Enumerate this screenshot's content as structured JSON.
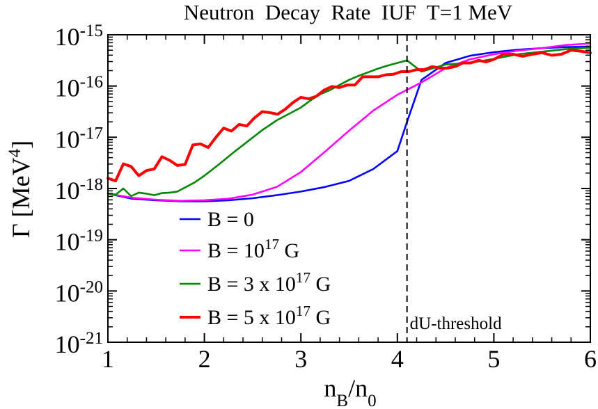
{
  "chart_data": {
    "type": "line",
    "title": "Neutron  Decay  Rate  IUF  T=1 MeV",
    "xlabel": {
      "base": "n",
      "sub1": "B",
      "slash": "/n",
      "sub2": "0"
    },
    "ylabel": {
      "text": "Γ [MeV",
      "sup": "4",
      "close": "]"
    },
    "xlim": [
      1,
      6
    ],
    "ylim_log10": [
      -21,
      -15
    ],
    "x_ticks": [
      {
        "value": 1,
        "label": "1"
      },
      {
        "value": 2,
        "label": "2"
      },
      {
        "value": 3,
        "label": "3"
      },
      {
        "value": 4,
        "label": "4"
      },
      {
        "value": 5,
        "label": "5"
      },
      {
        "value": 6,
        "label": "6"
      }
    ],
    "y_ticks": [
      {
        "exp": -15,
        "base": "10",
        "sup": "-15"
      },
      {
        "exp": -16,
        "base": "10",
        "sup": "-16"
      },
      {
        "exp": -17,
        "base": "10",
        "sup": "-17"
      },
      {
        "exp": -18,
        "base": "10",
        "sup": "-18"
      },
      {
        "exp": -19,
        "base": "10",
        "sup": "-19"
      },
      {
        "exp": -20,
        "base": "10",
        "sup": "-20"
      },
      {
        "exp": -21,
        "base": "10",
        "sup": "-21"
      }
    ],
    "threshold": {
      "x": 4.1,
      "label": "dU-threshold"
    },
    "legend_position": "bottom-left",
    "series": [
      {
        "name": "B = 0",
        "legend": {
          "text": "B = 0",
          "sup": "",
          "after": ""
        },
        "color": "#0000ff",
        "x": [
          1.0,
          1.25,
          1.5,
          1.75,
          2.0,
          2.25,
          2.5,
          2.75,
          3.0,
          3.25,
          3.5,
          3.75,
          4.0,
          4.1,
          4.25,
          4.5,
          4.75,
          5.0,
          5.25,
          5.5,
          5.75,
          6.0
        ],
        "log10_y": [
          -18.1,
          -18.2,
          -18.23,
          -18.25,
          -18.25,
          -18.23,
          -18.19,
          -18.13,
          -18.06,
          -17.97,
          -17.85,
          -17.62,
          -17.27,
          -16.7,
          -15.88,
          -15.55,
          -15.41,
          -15.34,
          -15.29,
          -15.26,
          -15.24,
          -15.23
        ]
      },
      {
        "name": "B = 10^17 G",
        "legend": {
          "text": "B = 10",
          "sup": "17",
          "after": " G"
        },
        "color": "#ff00ff",
        "x": [
          1.0,
          1.25,
          1.5,
          1.75,
          2.0,
          2.25,
          2.5,
          2.75,
          3.0,
          3.25,
          3.5,
          3.75,
          4.0,
          4.25,
          4.5,
          4.75,
          5.0,
          5.25,
          5.5,
          5.75,
          6.0
        ],
        "log10_y": [
          -18.1,
          -18.18,
          -18.22,
          -18.24,
          -18.23,
          -18.2,
          -18.12,
          -17.97,
          -17.68,
          -17.28,
          -16.87,
          -16.48,
          -16.17,
          -15.93,
          -15.65,
          -15.48,
          -15.38,
          -15.31,
          -15.26,
          -15.2,
          -15.17
        ]
      },
      {
        "name": "B = 3 x 10^17 G",
        "legend": {
          "text": "B = 3 x 10",
          "sup": "17",
          "after": " G"
        },
        "color": "#008800",
        "x": [
          1.0,
          1.08,
          1.16,
          1.24,
          1.32,
          1.4,
          1.48,
          1.56,
          1.64,
          1.72,
          1.8,
          1.9,
          2.0,
          2.15,
          2.3,
          2.45,
          2.6,
          2.75,
          2.9,
          3.0,
          3.1,
          3.2,
          3.3,
          3.4,
          3.5,
          3.6,
          3.7,
          3.8,
          3.9,
          4.0,
          4.1,
          4.25,
          4.5,
          4.75,
          5.0,
          5.25,
          5.5,
          5.75,
          6.0
        ],
        "log10_y": [
          -18.1,
          -18.12,
          -18.0,
          -18.15,
          -18.08,
          -18.1,
          -18.13,
          -18.09,
          -18.08,
          -18.06,
          -17.98,
          -17.88,
          -17.75,
          -17.53,
          -17.3,
          -17.08,
          -16.86,
          -16.67,
          -16.52,
          -16.42,
          -16.28,
          -16.16,
          -16.08,
          -15.98,
          -15.88,
          -15.8,
          -15.73,
          -15.66,
          -15.6,
          -15.55,
          -15.5,
          -15.72,
          -15.58,
          -15.55,
          -15.47,
          -15.38,
          -15.33,
          -15.28,
          -15.25
        ]
      },
      {
        "name": "B = 5 x 10^17 G",
        "legend": {
          "text": "B = 5 x 10",
          "sup": "17",
          "after": " G"
        },
        "color": "#ff0000",
        "x": [
          1.0,
          1.08,
          1.16,
          1.24,
          1.32,
          1.4,
          1.48,
          1.56,
          1.64,
          1.72,
          1.8,
          1.88,
          1.96,
          2.04,
          2.12,
          2.2,
          2.28,
          2.36,
          2.44,
          2.52,
          2.6,
          2.68,
          2.76,
          2.84,
          2.92,
          3.0,
          3.08,
          3.16,
          3.24,
          3.32,
          3.4,
          3.48,
          3.56,
          3.64,
          3.72,
          3.8,
          3.88,
          3.96,
          4.04,
          4.12,
          4.2,
          4.28,
          4.36,
          4.44,
          4.52,
          4.6,
          4.68,
          4.76,
          4.84,
          4.92,
          5.0,
          5.1,
          5.2,
          5.3,
          5.4,
          5.5,
          5.6,
          5.7,
          5.8,
          5.9,
          6.0
        ],
        "log10_y": [
          -17.8,
          -17.85,
          -17.52,
          -17.57,
          -17.75,
          -17.65,
          -17.62,
          -17.38,
          -17.45,
          -17.55,
          -17.53,
          -17.15,
          -17.13,
          -17.2,
          -17.0,
          -16.82,
          -16.88,
          -16.75,
          -16.78,
          -16.62,
          -16.5,
          -16.52,
          -16.55,
          -16.45,
          -16.32,
          -16.22,
          -16.25,
          -16.2,
          -16.08,
          -16.01,
          -16.03,
          -15.98,
          -15.98,
          -15.82,
          -15.82,
          -15.82,
          -15.78,
          -15.77,
          -15.72,
          -15.72,
          -15.68,
          -15.68,
          -15.62,
          -15.65,
          -15.65,
          -15.62,
          -15.55,
          -15.55,
          -15.5,
          -15.53,
          -15.48,
          -15.38,
          -15.38,
          -15.42,
          -15.38,
          -15.35,
          -15.4,
          -15.38,
          -15.3,
          -15.32,
          -15.35
        ]
      }
    ]
  }
}
